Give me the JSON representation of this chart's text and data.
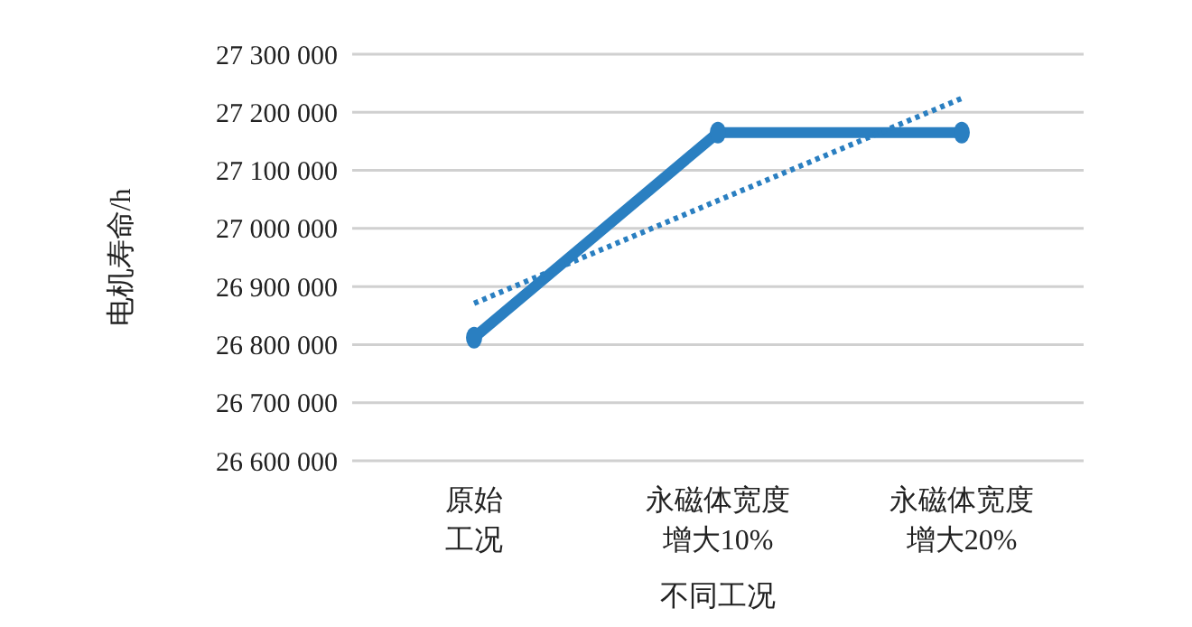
{
  "chart_data": {
    "type": "line",
    "xlabel": "不同工况",
    "ylabel": "电机寿命/h",
    "categories": [
      "原始工况",
      "永磁体宽度增大10%",
      "永磁体宽度增大20%"
    ],
    "series": [
      {
        "color": "#2a7fc1",
        "values": [
          26812000,
          27165000,
          27165000
        ],
        "marker": "circle",
        "line_style": "solid"
      },
      {
        "type": "line",
        "color": "#2a7fc1",
        "values": [
          26871000,
          27048000,
          27224000
        ],
        "marker": "none",
        "line_style": "dotted"
      }
    ],
    "ylim": [
      26600000,
      27300000
    ],
    "yticks": [
      {
        "value": 26600000,
        "label": "26 600 000"
      },
      {
        "value": 26700000,
        "label": "26 700 000"
      },
      {
        "value": 26800000,
        "label": "26 800 000"
      },
      {
        "value": 26900000,
        "label": "26 900 000"
      },
      {
        "value": 27000000,
        "label": "27 000 000"
      },
      {
        "value": 27100000,
        "label": "27 100 000"
      },
      {
        "value": 27200000,
        "label": "27 200 000"
      },
      {
        "value": 27300000,
        "label": "27 300 000"
      }
    ],
    "grid": "y"
  }
}
